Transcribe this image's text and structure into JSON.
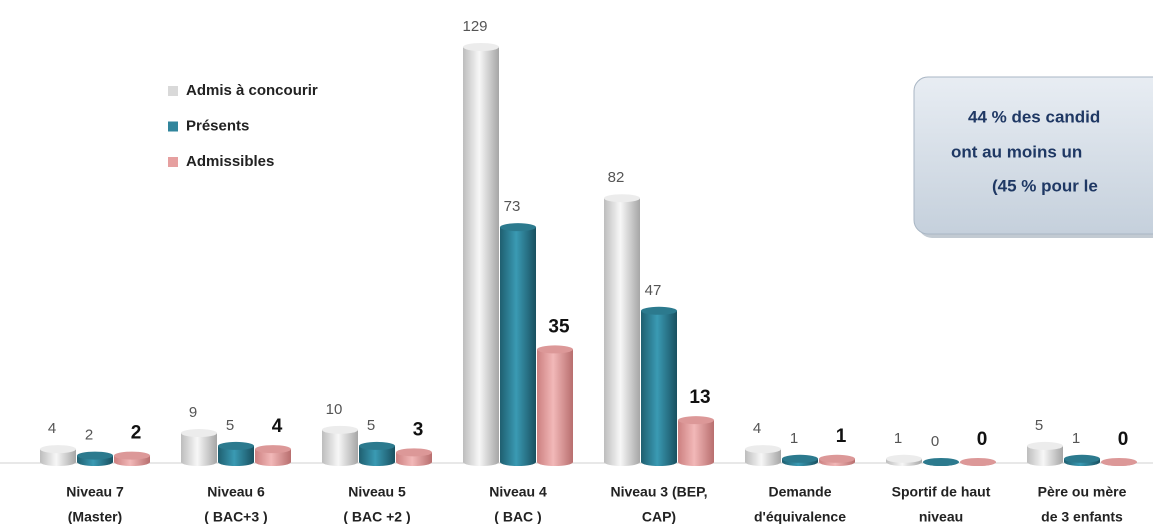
{
  "chart_data": {
    "type": "bar",
    "categories": [
      [
        "Niveau 7",
        "(Master)"
      ],
      [
        "Niveau 6",
        "( BAC+3 )"
      ],
      [
        "Niveau 5",
        "( BAC +2 )"
      ],
      [
        "Niveau 4",
        "( BAC )"
      ],
      [
        "Niveau 3 (BEP,",
        "CAP)"
      ],
      [
        "Demande",
        "d'équivalence"
      ],
      [
        "Sportif de haut",
        "niveau"
      ],
      [
        "Père ou mère",
        "de 3 enfants"
      ]
    ],
    "series": [
      {
        "name": "Admis à concourir",
        "color": "#d9d9d9",
        "values": [
          4,
          9,
          10,
          129,
          82,
          4,
          1,
          5
        ]
      },
      {
        "name": "Présents",
        "color": "#31859c",
        "values": [
          2,
          5,
          5,
          73,
          47,
          1,
          0,
          1
        ]
      },
      {
        "name": "Admissibles",
        "color": "#e6a0a0",
        "values": [
          2,
          4,
          3,
          35,
          13,
          1,
          0,
          0
        ]
      }
    ],
    "annotation": [
      "44 % des candid",
      "ont au moins un",
      "(45 % pour le"
    ]
  }
}
